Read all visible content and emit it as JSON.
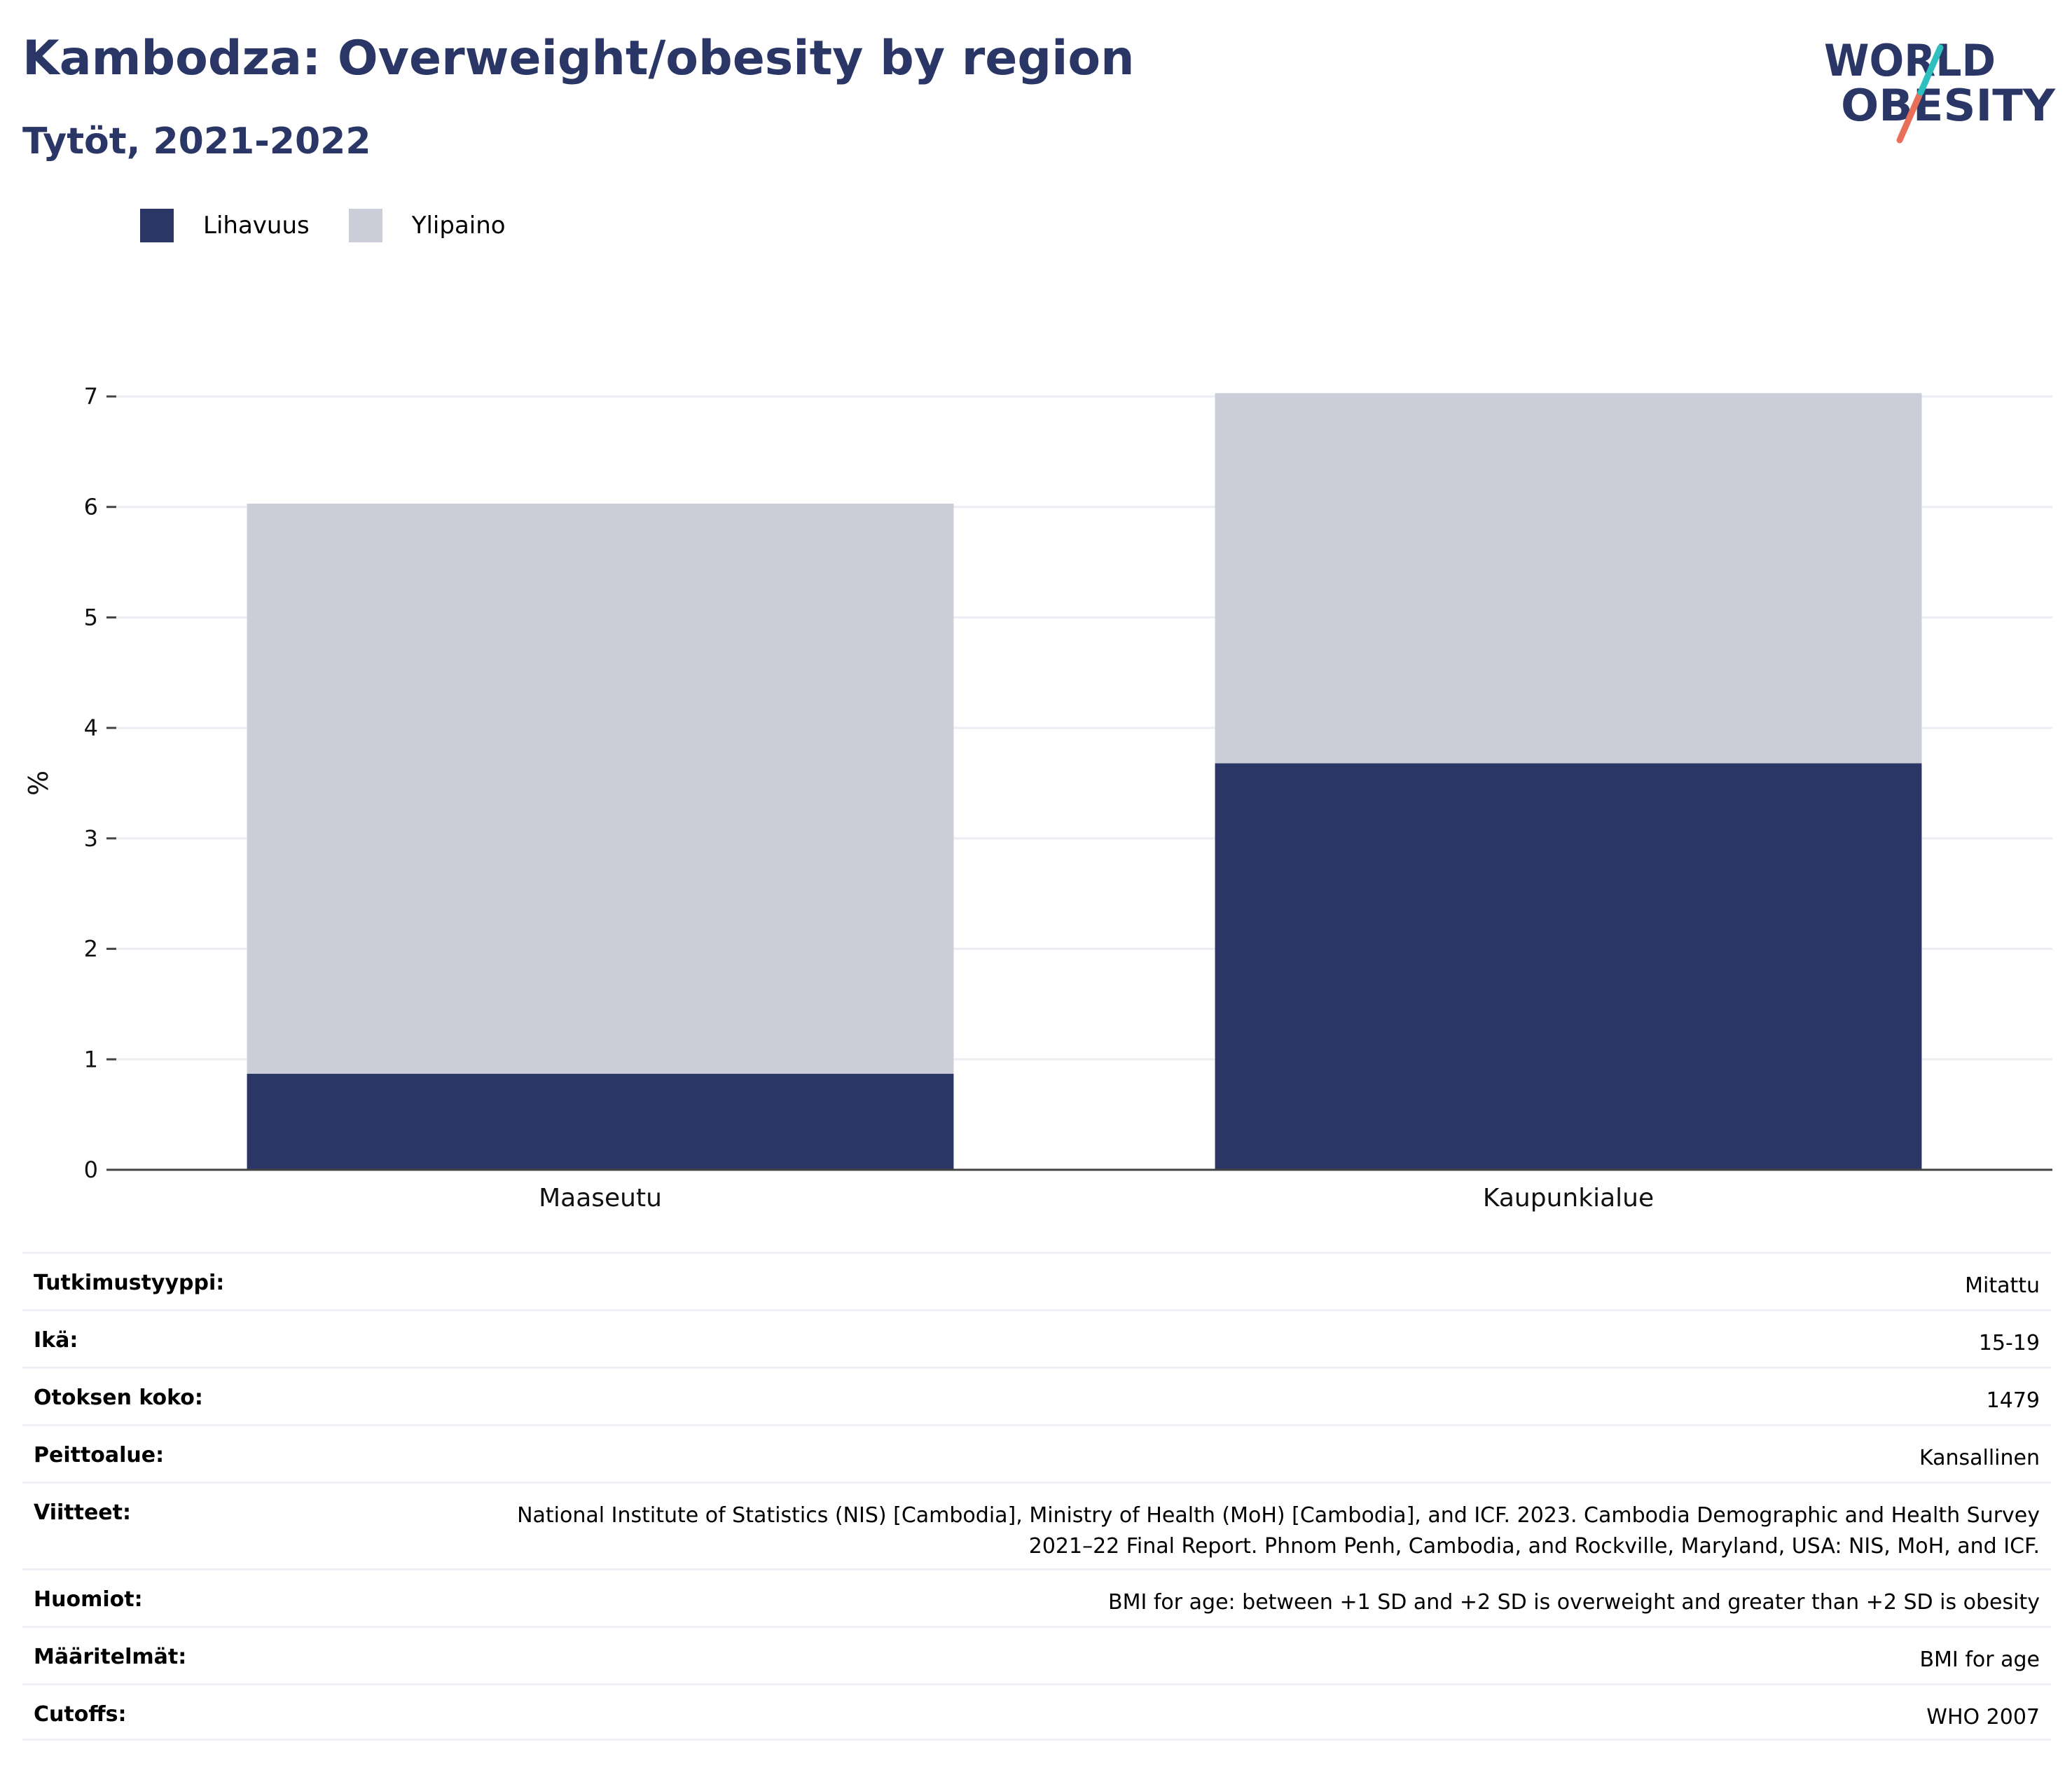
{
  "header": {
    "title": "Kambodza: Overweight/obesity by region",
    "subtitle": "Tytöt, 2021-2022"
  },
  "logo": {
    "line1": "WORLD",
    "line2": "OBESITY"
  },
  "colors": {
    "obesity": "#2a3766",
    "overweight": "#cbcdd8",
    "title": "#2a3766",
    "grid": "#eceef3"
  },
  "legend": [
    {
      "label": "Lihavuus",
      "color": "#2a3766"
    },
    {
      "label": "Ylipaino",
      "color": "#cbcdd8"
    }
  ],
  "chart_data": {
    "type": "bar",
    "stacked": true,
    "categories": [
      "Maaseutu",
      "Kaupunkialue"
    ],
    "series": [
      {
        "name": "Lihavuus",
        "values": [
          0.87,
          3.68
        ]
      },
      {
        "name": "Ylipaino",
        "values": [
          5.16,
          3.35
        ]
      }
    ],
    "ylabel": "%",
    "ylim": [
      0,
      7
    ],
    "yticks": [
      "0",
      "1",
      "2",
      "3",
      "4",
      "5",
      "6",
      "7"
    ],
    "grid": true,
    "legend_position": "top-left"
  },
  "meta": [
    {
      "label": "Tutkimustyyppi:",
      "value": "Mitattu"
    },
    {
      "label": "Ikä:",
      "value": "15-19"
    },
    {
      "label": "Otoksen koko:",
      "value": "1479"
    },
    {
      "label": "Peittoalue:",
      "value": "Kansallinen"
    },
    {
      "label": "Viitteet:",
      "value": "National Institute of Statistics (NIS) [Cambodia], Ministry of Health (MoH) [Cambodia], and ICF. 2023. Cambodia Demographic and Health Survey 2021–22 Final Report. Phnom Penh, Cambodia, and Rockville, Maryland, USA: NIS, MoH, and ICF."
    },
    {
      "label": "Huomiot:",
      "value": "BMI for age: between +1 SD and +2 SD is overweight and greater than +2 SD is obesity"
    },
    {
      "label": "Määritelmät:",
      "value": "BMI for age"
    },
    {
      "label": "Cutoffs:",
      "value": "WHO 2007"
    }
  ]
}
